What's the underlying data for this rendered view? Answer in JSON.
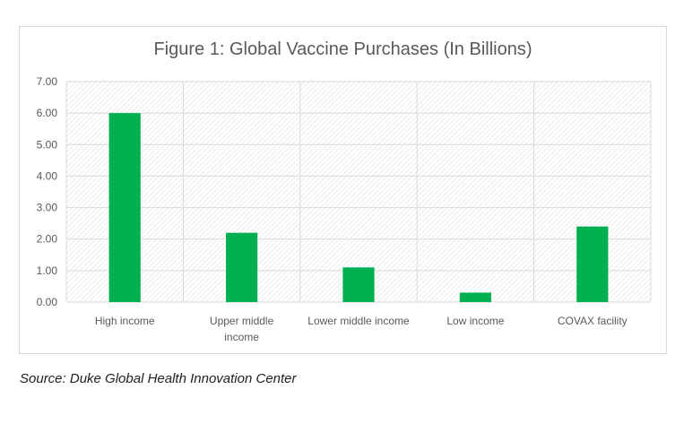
{
  "chart_data": {
    "type": "bar",
    "title": "Figure 1: Global Vaccine Purchases (In Billions)",
    "categories": [
      "High income",
      "Upper middle income",
      "Lower middle income",
      "Low income",
      "COVAX facility"
    ],
    "category_lines": [
      [
        "High income"
      ],
      [
        "Upper middle",
        "income"
      ],
      [
        "Lower middle income"
      ],
      [
        "Low income"
      ],
      [
        "COVAX facility"
      ]
    ],
    "values": [
      6.0,
      2.2,
      1.1,
      0.3,
      2.4
    ],
    "ylim": [
      0,
      7
    ],
    "yticks": [
      "0.00",
      "1.00",
      "2.00",
      "3.00",
      "4.00",
      "5.00",
      "6.00",
      "7.00"
    ],
    "xlabel": "",
    "ylabel": "",
    "grid": true,
    "bar_color": "#00b050"
  },
  "source": "Source: Duke Global Health Innovation Center"
}
